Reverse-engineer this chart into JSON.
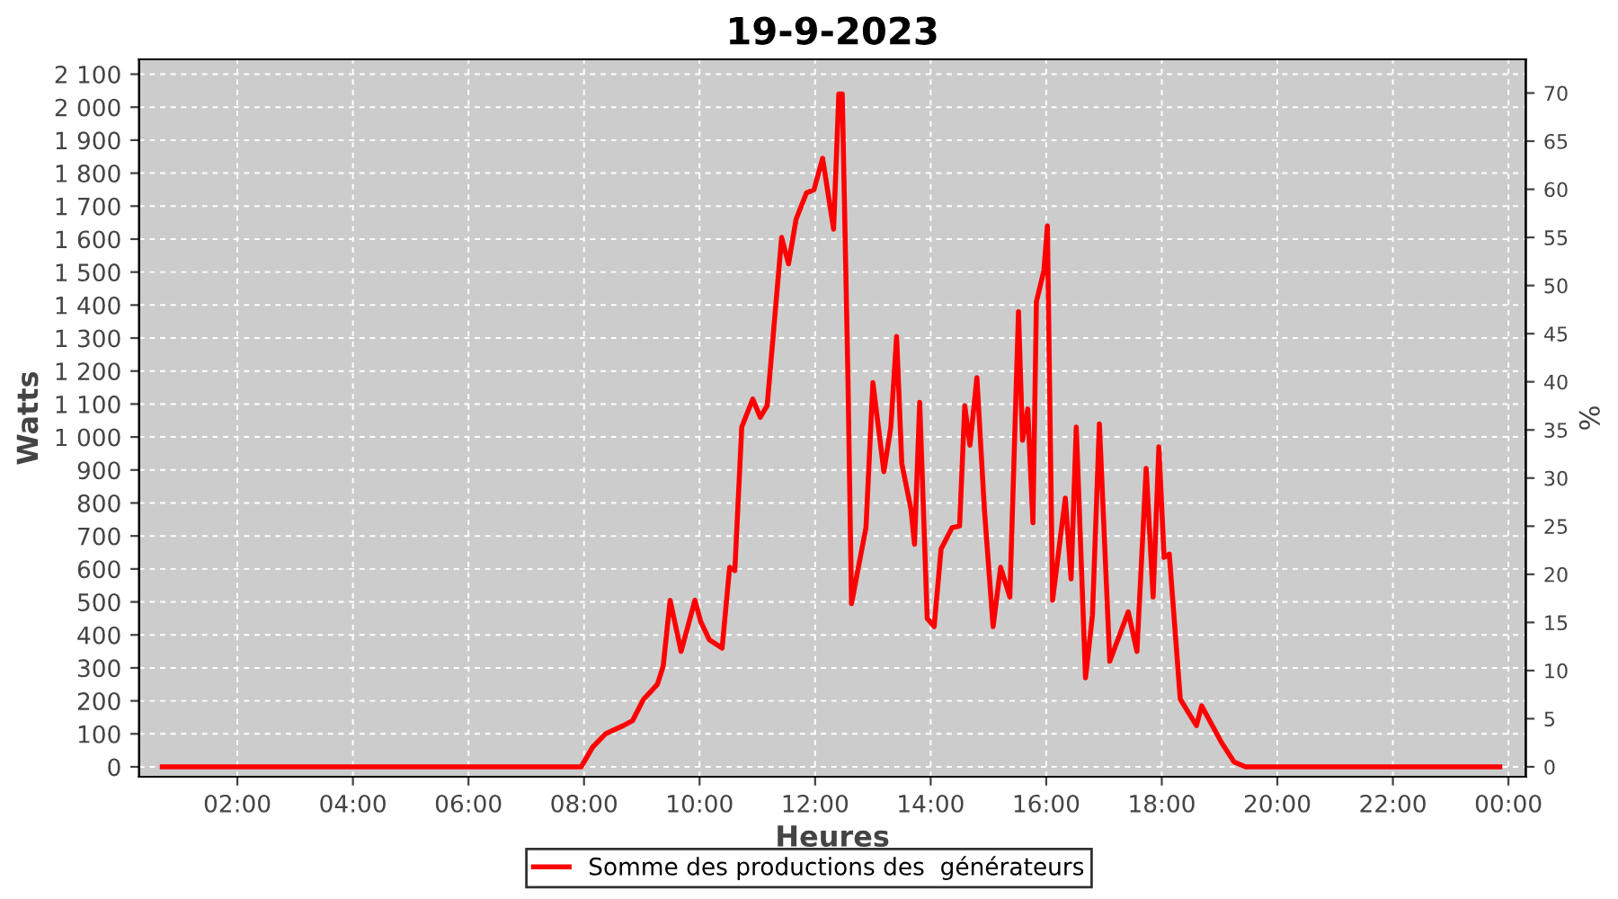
{
  "chart_data": {
    "type": "line",
    "title": "19-9-2023",
    "xlabel": "Heures",
    "ylabel": "Watts",
    "y2label": "%",
    "xlim": [
      0.3,
      24.3
    ],
    "xticks": [
      {
        "value": 2,
        "label": "02:00"
      },
      {
        "value": 4,
        "label": "04:00"
      },
      {
        "value": 6,
        "label": "06:00"
      },
      {
        "value": 8,
        "label": "08:00"
      },
      {
        "value": 10,
        "label": "10:00"
      },
      {
        "value": 12,
        "label": "12:00"
      },
      {
        "value": 14,
        "label": "14:00"
      },
      {
        "value": 16,
        "label": "16:00"
      },
      {
        "value": 18,
        "label": "18:00"
      },
      {
        "value": 20,
        "label": "20:00"
      },
      {
        "value": 22,
        "label": "22:00"
      },
      {
        "value": 24,
        "label": "00:00"
      }
    ],
    "ylim": [
      -30,
      2145
    ],
    "yticks": [
      0,
      100,
      200,
      300,
      400,
      500,
      600,
      700,
      800,
      900,
      {
        "value": 1000,
        "label": "1 000"
      },
      {
        "value": 1100,
        "label": "1 100"
      },
      {
        "value": 1200,
        "label": "1 200"
      },
      {
        "value": 1300,
        "label": "1 300"
      },
      {
        "value": 1400,
        "label": "1 400"
      },
      {
        "value": 1500,
        "label": "1 500"
      },
      {
        "value": 1600,
        "label": "1 600"
      },
      {
        "value": 1700,
        "label": "1 700"
      },
      {
        "value": 1800,
        "label": "1 800"
      },
      {
        "value": 1900,
        "label": "1 900"
      },
      {
        "value": 2000,
        "label": "2 000"
      },
      {
        "value": 2100,
        "label": "2 100"
      }
    ],
    "y2lim": [
      -1.03,
      73.5
    ],
    "y2ticks": [
      0,
      5,
      10,
      15,
      20,
      25,
      30,
      35,
      40,
      45,
      50,
      55,
      60,
      65,
      70
    ],
    "grid": true,
    "legend": "bottom",
    "marker": "none",
    "line_style": "solid",
    "series": [
      {
        "name": "Somme des productions des  générateurs",
        "color": "#ff0000",
        "x": [
          0.7,
          7.95,
          8.15,
          8.37,
          8.68,
          8.84,
          9.03,
          9.27,
          9.37,
          9.49,
          9.68,
          9.92,
          10.02,
          10.17,
          10.39,
          10.52,
          10.61,
          10.73,
          10.92,
          11.05,
          11.17,
          11.29,
          11.42,
          11.54,
          11.67,
          11.85,
          11.98,
          12.13,
          12.32,
          12.41,
          12.47,
          12.57,
          12.63,
          12.76,
          12.88,
          13.0,
          13.19,
          13.31,
          13.41,
          13.5,
          13.66,
          13.72,
          13.81,
          13.94,
          14.06,
          14.18,
          14.37,
          14.5,
          14.59,
          14.68,
          14.8,
          14.93,
          15.08,
          15.21,
          15.37,
          15.52,
          15.59,
          15.68,
          15.77,
          15.83,
          15.96,
          16.02,
          16.11,
          16.33,
          16.43,
          16.52,
          16.68,
          16.8,
          16.92,
          17.1,
          17.42,
          17.57,
          17.73,
          17.85,
          17.95,
          18.04,
          18.13,
          18.32,
          18.6,
          18.69,
          19.03,
          19.25,
          19.45,
          23.85
        ],
        "values": [
          0,
          0,
          60,
          100,
          125,
          140,
          205,
          250,
          305,
          505,
          350,
          505,
          440,
          385,
          360,
          605,
          595,
          1030,
          1115,
          1060,
          1095,
          1340,
          1605,
          1525,
          1660,
          1740,
          1750,
          1845,
          1630,
          2040,
          2040,
          1160,
          495,
          615,
          725,
          1165,
          895,
          1030,
          1305,
          920,
          780,
          675,
          1105,
          450,
          425,
          660,
          725,
          730,
          1095,
          975,
          1180,
          780,
          425,
          605,
          515,
          1380,
          990,
          1085,
          740,
          1410,
          1505,
          1640,
          505,
          815,
          570,
          1030,
          270,
          460,
          1040,
          320,
          470,
          350,
          905,
          515,
          970,
          635,
          645,
          205,
          125,
          185,
          75,
          15,
          0,
          0
        ]
      }
    ]
  }
}
